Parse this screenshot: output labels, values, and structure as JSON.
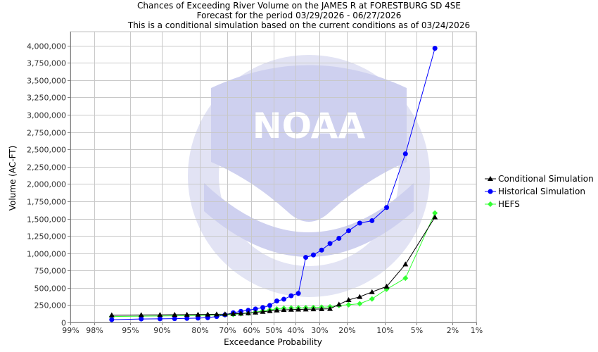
{
  "chart_data": {
    "type": "line",
    "title_lines": [
      "Chances of Exceeding River Volume on the JAMES R at FORESTBURG SD 4SE",
      "Forecast for the period 03/29/2026 - 06/27/2026",
      "This is a conditional simulation based on the current conditions as of 03/24/2026"
    ],
    "xlabel": "Exceedance Probability",
    "ylabel": "Volume (AC-FT)",
    "x_scale": "normal-probability",
    "xlim": [
      0.99,
      0.01
    ],
    "x_ticks": [
      {
        "p": 0.99,
        "label": "99%"
      },
      {
        "p": 0.98,
        "label": "98%"
      },
      {
        "p": 0.95,
        "label": "95%"
      },
      {
        "p": 0.9,
        "label": "90%"
      },
      {
        "p": 0.8,
        "label": "80%"
      },
      {
        "p": 0.7,
        "label": "70%"
      },
      {
        "p": 0.6,
        "label": "60%"
      },
      {
        "p": 0.5,
        "label": "50%"
      },
      {
        "p": 0.4,
        "label": "40%"
      },
      {
        "p": 0.3,
        "label": "30%"
      },
      {
        "p": 0.2,
        "label": "20%"
      },
      {
        "p": 0.1,
        "label": "10%"
      },
      {
        "p": 0.05,
        "label": "5%"
      },
      {
        "p": 0.02,
        "label": "2%"
      },
      {
        "p": 0.01,
        "label": "1%"
      }
    ],
    "ylim": [
      0,
      4200000
    ],
    "y_ticks": [
      {
        "v": 0,
        "label": "0"
      },
      {
        "v": 250000,
        "label": "250,000"
      },
      {
        "v": 500000,
        "label": "500,000"
      },
      {
        "v": 750000,
        "label": "750,000"
      },
      {
        "v": 1000000,
        "label": "1,000,000"
      },
      {
        "v": 1250000,
        "label": "1,250,000"
      },
      {
        "v": 1500000,
        "label": "1,500,000"
      },
      {
        "v": 1750000,
        "label": "1,750,000"
      },
      {
        "v": 2000000,
        "label": "2,000,000"
      },
      {
        "v": 2250000,
        "label": "2,250,000"
      },
      {
        "v": 2500000,
        "label": "2,500,000"
      },
      {
        "v": 2750000,
        "label": "2,750,000"
      },
      {
        "v": 3000000,
        "label": "3,000,000"
      },
      {
        "v": 3250000,
        "label": "3,250,000"
      },
      {
        "v": 3500000,
        "label": "3,500,000"
      },
      {
        "v": 3750000,
        "label": "3,750,000"
      },
      {
        "v": 4000000,
        "label": "4,000,000"
      }
    ],
    "grid": true,
    "legend_position": "right",
    "watermark": "NOAA",
    "series": [
      {
        "name": "Conditional Simulation",
        "color": "#000000",
        "marker": "triangle",
        "points": [
          [
            0.968,
            105000
          ],
          [
            0.935,
            108000
          ],
          [
            0.903,
            110000
          ],
          [
            0.871,
            112000
          ],
          [
            0.839,
            113000
          ],
          [
            0.806,
            115000
          ],
          [
            0.774,
            116000
          ],
          [
            0.742,
            118000
          ],
          [
            0.71,
            120000
          ],
          [
            0.677,
            125000
          ],
          [
            0.645,
            130000
          ],
          [
            0.613,
            135000
          ],
          [
            0.581,
            145000
          ],
          [
            0.548,
            155000
          ],
          [
            0.516,
            165000
          ],
          [
            0.484,
            175000
          ],
          [
            0.452,
            182000
          ],
          [
            0.419,
            185000
          ],
          [
            0.387,
            188000
          ],
          [
            0.355,
            190000
          ],
          [
            0.323,
            192000
          ],
          [
            0.29,
            194000
          ],
          [
            0.258,
            197000
          ],
          [
            0.226,
            260000
          ],
          [
            0.194,
            325000
          ],
          [
            0.161,
            370000
          ],
          [
            0.129,
            440000
          ],
          [
            0.097,
            520000
          ],
          [
            0.065,
            840000
          ],
          [
            0.032,
            1520000
          ]
        ]
      },
      {
        "name": "Historical Simulation",
        "color": "#0000ff",
        "marker": "circle",
        "points": [
          [
            0.968,
            40000
          ],
          [
            0.935,
            50000
          ],
          [
            0.903,
            52000
          ],
          [
            0.871,
            55000
          ],
          [
            0.839,
            58000
          ],
          [
            0.806,
            62000
          ],
          [
            0.774,
            68000
          ],
          [
            0.742,
            85000
          ],
          [
            0.71,
            110000
          ],
          [
            0.677,
            140000
          ],
          [
            0.645,
            160000
          ],
          [
            0.613,
            175000
          ],
          [
            0.581,
            195000
          ],
          [
            0.548,
            215000
          ],
          [
            0.516,
            245000
          ],
          [
            0.484,
            310000
          ],
          [
            0.452,
            335000
          ],
          [
            0.419,
            385000
          ],
          [
            0.387,
            420000
          ],
          [
            0.355,
            940000
          ],
          [
            0.323,
            975000
          ],
          [
            0.29,
            1045000
          ],
          [
            0.258,
            1140000
          ],
          [
            0.226,
            1215000
          ],
          [
            0.194,
            1325000
          ],
          [
            0.161,
            1435000
          ],
          [
            0.129,
            1470000
          ],
          [
            0.097,
            1660000
          ],
          [
            0.065,
            2435000
          ],
          [
            0.032,
            3960000
          ]
        ]
      },
      {
        "name": "HEFS",
        "color": "#33ff33",
        "marker": "diamond",
        "points": [
          [
            0.968,
            85000
          ],
          [
            0.935,
            90000
          ],
          [
            0.903,
            93000
          ],
          [
            0.871,
            96000
          ],
          [
            0.839,
            98000
          ],
          [
            0.806,
            100000
          ],
          [
            0.774,
            103000
          ],
          [
            0.742,
            106000
          ],
          [
            0.71,
            110000
          ],
          [
            0.677,
            115000
          ],
          [
            0.645,
            125000
          ],
          [
            0.613,
            135000
          ],
          [
            0.581,
            150000
          ],
          [
            0.548,
            165000
          ],
          [
            0.516,
            180000
          ],
          [
            0.484,
            195000
          ],
          [
            0.452,
            205000
          ],
          [
            0.419,
            208000
          ],
          [
            0.387,
            210000
          ],
          [
            0.355,
            212000
          ],
          [
            0.323,
            215000
          ],
          [
            0.29,
            220000
          ],
          [
            0.258,
            225000
          ],
          [
            0.226,
            245000
          ],
          [
            0.194,
            255000
          ],
          [
            0.161,
            270000
          ],
          [
            0.129,
            340000
          ],
          [
            0.097,
            480000
          ],
          [
            0.065,
            640000
          ],
          [
            0.032,
            1580000
          ]
        ]
      }
    ]
  }
}
